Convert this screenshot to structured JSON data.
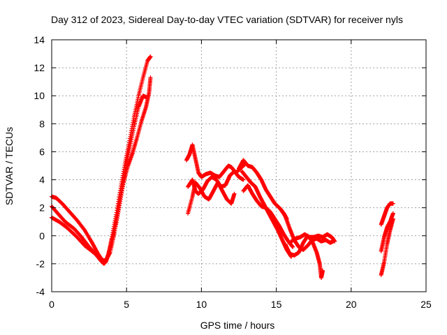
{
  "chart_data": {
    "type": "scatter",
    "title": "Day 312 of 2023, Sidereal Day-to-day VTEC variation (SDTVAR) for receiver nyls",
    "xlabel": "GPS time / hours",
    "ylabel": "SDTVAR / TECUs",
    "xlim": [
      0,
      25
    ],
    "ylim": [
      -4,
      14
    ],
    "xticks": [
      0,
      5,
      10,
      15,
      20,
      25
    ],
    "yticks": [
      -4,
      -2,
      0,
      2,
      4,
      6,
      8,
      10,
      12,
      14
    ],
    "grid": true,
    "marker": "+",
    "series": [
      {
        "name": "SDTVAR",
        "color": "#ff0000",
        "tracks": [
          [
            [
              0.0,
              2.8
            ],
            [
              0.3,
              2.7
            ],
            [
              0.7,
              2.3
            ],
            [
              1.2,
              1.7
            ],
            [
              1.7,
              1.1
            ],
            [
              2.2,
              0.4
            ],
            [
              2.7,
              -0.5
            ],
            [
              3.1,
              -1.3
            ],
            [
              3.4,
              -1.8
            ],
            [
              3.6,
              -1.9
            ],
            [
              3.8,
              -1.3
            ],
            [
              4.0,
              -0.2
            ],
            [
              4.3,
              1.5
            ],
            [
              4.6,
              3.4
            ],
            [
              4.9,
              5.2
            ],
            [
              5.2,
              6.8
            ],
            [
              5.5,
              8.5
            ],
            [
              5.8,
              10.0
            ],
            [
              6.1,
              11.3
            ],
            [
              6.4,
              12.5
            ],
            [
              6.6,
              12.8
            ]
          ],
          [
            [
              0.0,
              2.1
            ],
            [
              0.4,
              1.6
            ],
            [
              0.9,
              1.0
            ],
            [
              1.5,
              0.5
            ],
            [
              2.0,
              -0.1
            ],
            [
              2.5,
              -0.8
            ],
            [
              3.0,
              -1.4
            ],
            [
              3.3,
              -1.8
            ],
            [
              3.5,
              -2.0
            ],
            [
              3.7,
              -1.6
            ],
            [
              4.0,
              -0.5
            ],
            [
              4.3,
              1.0
            ],
            [
              4.6,
              2.8
            ],
            [
              4.9,
              4.6
            ],
            [
              5.2,
              6.2
            ],
            [
              5.5,
              7.8
            ],
            [
              5.8,
              9.2
            ],
            [
              6.1,
              10.0
            ],
            [
              6.3,
              9.9
            ]
          ],
          [
            [
              0.0,
              1.3
            ],
            [
              0.5,
              1.0
            ],
            [
              1.0,
              0.6
            ],
            [
              1.6,
              0.0
            ],
            [
              2.2,
              -0.7
            ],
            [
              2.8,
              -1.2
            ],
            [
              3.3,
              -1.7
            ],
            [
              3.6,
              -1.8
            ],
            [
              3.9,
              -1.2
            ],
            [
              4.2,
              0.2
            ],
            [
              4.5,
              2.0
            ],
            [
              4.8,
              3.8
            ],
            [
              5.1,
              5.0
            ],
            [
              5.4,
              5.9
            ],
            [
              5.7,
              7.0
            ],
            [
              6.0,
              8.2
            ],
            [
              6.3,
              9.2
            ],
            [
              6.5,
              10.2
            ],
            [
              6.6,
              11.3
            ]
          ],
          [
            [
              9.0,
              5.4
            ],
            [
              9.2,
              5.8
            ],
            [
              9.4,
              6.5
            ],
            [
              9.6,
              5.5
            ],
            [
              9.8,
              4.5
            ],
            [
              10.0,
              4.2
            ],
            [
              10.3,
              4.4
            ],
            [
              10.6,
              4.5
            ],
            [
              10.9,
              4.3
            ],
            [
              11.2,
              4.2
            ],
            [
              11.5,
              4.6
            ],
            [
              11.8,
              5.0
            ],
            [
              12.0,
              4.9
            ],
            [
              12.3,
              4.5
            ],
            [
              12.6,
              4.8
            ],
            [
              12.9,
              5.1
            ]
          ],
          [
            [
              9.1,
              1.6
            ],
            [
              9.4,
              2.8
            ],
            [
              9.6,
              3.8
            ],
            [
              9.9,
              3.4
            ],
            [
              10.2,
              2.8
            ],
            [
              10.5,
              2.6
            ],
            [
              10.8,
              3.2
            ],
            [
              11.1,
              3.8
            ],
            [
              11.4,
              3.2
            ],
            [
              11.7,
              2.6
            ],
            [
              12.0,
              2.3
            ],
            [
              12.2,
              3.0
            ]
          ],
          [
            [
              9.1,
              3.5
            ],
            [
              9.4,
              4.0
            ],
            [
              9.6,
              3.2
            ],
            [
              9.8,
              3.0
            ],
            [
              10.1,
              3.3
            ],
            [
              10.4,
              3.9
            ],
            [
              10.7,
              4.2
            ],
            [
              11.0,
              4.0
            ],
            [
              11.3,
              3.5
            ],
            [
              11.6,
              3.6
            ],
            [
              11.9,
              4.3
            ],
            [
              12.2,
              4.6
            ],
            [
              12.5,
              4.2
            ],
            [
              12.8,
              4.0
            ]
          ],
          [
            [
              12.5,
              4.8
            ],
            [
              12.8,
              5.4
            ],
            [
              13.1,
              5.0
            ],
            [
              13.4,
              4.9
            ],
            [
              13.7,
              4.5
            ],
            [
              14.0,
              4.0
            ],
            [
              14.3,
              3.3
            ],
            [
              14.6,
              2.8
            ],
            [
              14.9,
              2.3
            ],
            [
              15.2,
              2.0
            ],
            [
              15.5,
              1.6
            ],
            [
              15.7,
              1.2
            ]
          ],
          [
            [
              12.7,
              4.6
            ],
            [
              13.0,
              4.2
            ],
            [
              13.3,
              3.8
            ],
            [
              13.6,
              3.5
            ],
            [
              13.9,
              2.8
            ],
            [
              14.2,
              2.2
            ],
            [
              14.5,
              1.6
            ],
            [
              14.8,
              1.0
            ],
            [
              15.1,
              0.4
            ],
            [
              15.4,
              -0.3
            ],
            [
              15.7,
              -1.0
            ],
            [
              16.0,
              -1.5
            ]
          ],
          [
            [
              12.8,
              3.2
            ],
            [
              13.1,
              3.6
            ],
            [
              13.4,
              3.0
            ],
            [
              13.7,
              2.5
            ],
            [
              14.0,
              2.1
            ],
            [
              14.3,
              2.0
            ],
            [
              14.6,
              1.7
            ],
            [
              14.9,
              1.2
            ],
            [
              15.2,
              0.7
            ],
            [
              15.5,
              0.1
            ],
            [
              15.8,
              -0.4
            ],
            [
              16.1,
              -0.8
            ]
          ],
          [
            [
              15.3,
              1.9
            ],
            [
              15.6,
              1.4
            ],
            [
              15.9,
              0.5
            ],
            [
              16.2,
              -0.3
            ],
            [
              16.5,
              -0.8
            ],
            [
              16.8,
              -1.0
            ],
            [
              17.1,
              -0.7
            ],
            [
              17.4,
              -0.3
            ],
            [
              17.7,
              -0.2
            ],
            [
              18.0,
              -0.4
            ],
            [
              18.3,
              -0.3
            ],
            [
              18.6,
              -0.5
            ],
            [
              18.8,
              -0.4
            ]
          ],
          [
            [
              15.6,
              -0.6
            ],
            [
              15.9,
              -1.3
            ],
            [
              16.2,
              -1.4
            ],
            [
              16.5,
              -1.2
            ],
            [
              16.8,
              -0.5
            ],
            [
              17.1,
              0.0
            ],
            [
              17.4,
              -0.4
            ],
            [
              17.7,
              -1.2
            ],
            [
              17.9,
              -2.0
            ],
            [
              18.0,
              -3.0
            ],
            [
              18.1,
              -2.5
            ]
          ],
          [
            [
              16.0,
              -0.4
            ],
            [
              16.3,
              -0.2
            ],
            [
              16.6,
              -0.1
            ],
            [
              16.9,
              0.1
            ],
            [
              17.2,
              -0.1
            ],
            [
              17.5,
              -0.1
            ],
            [
              17.8,
              0.0
            ],
            [
              18.1,
              -0.1
            ],
            [
              18.4,
              0.1
            ],
            [
              18.7,
              -0.1
            ],
            [
              18.9,
              -0.4
            ]
          ],
          [
            [
              22.0,
              0.8
            ],
            [
              22.2,
              1.4
            ],
            [
              22.4,
              2.0
            ],
            [
              22.6,
              2.3
            ],
            [
              22.8,
              2.3
            ]
          ],
          [
            [
              22.0,
              -2.8
            ],
            [
              22.2,
              -1.9
            ],
            [
              22.4,
              -0.6
            ],
            [
              22.6,
              0.4
            ],
            [
              22.8,
              1.2
            ]
          ],
          [
            [
              22.0,
              -1.1
            ],
            [
              22.2,
              -0.1
            ],
            [
              22.4,
              0.6
            ],
            [
              22.6,
              1.0
            ],
            [
              22.8,
              1.6
            ]
          ]
        ]
      }
    ]
  }
}
